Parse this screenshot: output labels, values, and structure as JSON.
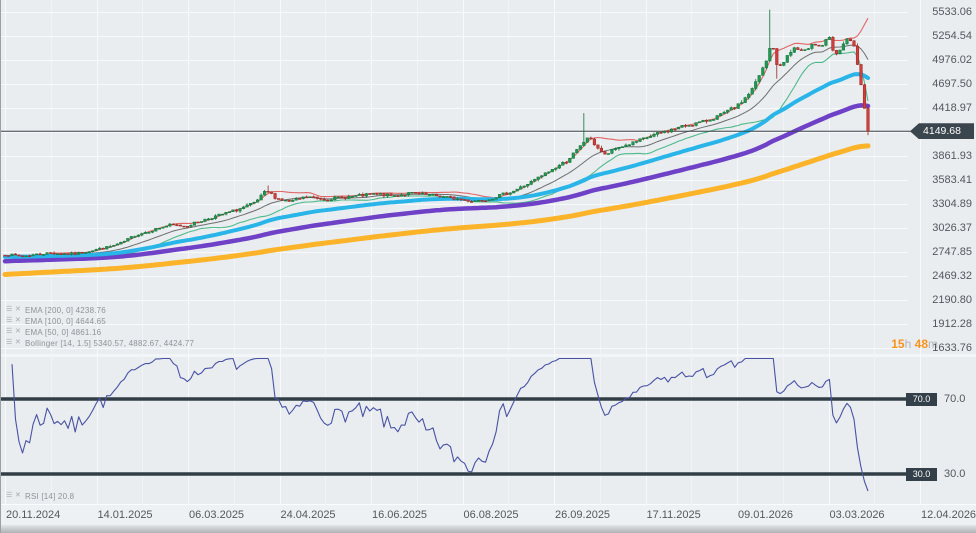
{
  "chart": {
    "current_price_label": "4149.68",
    "countdown": {
      "hours": "15",
      "hours_unit": "h",
      "minutes": "48",
      "minutes_unit": "m"
    },
    "legend_price": [
      {
        "name": "ema-200",
        "label": "EMA [200, 0] 4238.76"
      },
      {
        "name": "ema-100",
        "label": "EMA [100, 0] 4644.65"
      },
      {
        "name": "ema-50",
        "label": "EMA [50, 0] 4861.16"
      },
      {
        "name": "bollinger",
        "label": "Bollinger [14, 1.5] 5340.57, 4882.67, 4424.77"
      }
    ],
    "legend_rsi": [
      {
        "name": "rsi",
        "label": "RSI [14] 20.8"
      }
    ]
  },
  "chart_data": {
    "type": "candlestick",
    "title": "",
    "current_price": 4149.68,
    "price_axis": {
      "ticks": [
        {
          "v": 5533.06,
          "label": "5533.06"
        },
        {
          "v": 5254.54,
          "label": "5254.54"
        },
        {
          "v": 4976.02,
          "label": "4976.02"
        },
        {
          "v": 4697.5,
          "label": "4697.50"
        },
        {
          "v": 4418.97,
          "label": "4418.97"
        },
        {
          "v": 3861.93,
          "label": "3861.93"
        },
        {
          "v": 3583.41,
          "label": "3583.41"
        },
        {
          "v": 3304.89,
          "label": "3304.89"
        },
        {
          "v": 3026.37,
          "label": "3026.37"
        },
        {
          "v": 2747.85,
          "label": "2747.85"
        },
        {
          "v": 2469.32,
          "label": "2469.32"
        },
        {
          "v": 2190.8,
          "label": "2190.80"
        },
        {
          "v": 1912.28,
          "label": "1912.28"
        },
        {
          "v": 1633.76,
          "label": "1633.76"
        }
      ],
      "visible_range": [
        1552,
        5672
      ]
    },
    "time_axis": {
      "labels": [
        "20.11.2024",
        "14.01.2025",
        "06.03.2025",
        "24.04.2025",
        "16.06.2025",
        "06.08.2025",
        "26.09.2025",
        "17.11.2025",
        "09.01.2026",
        "03.03.2026",
        "12.04.2026"
      ]
    },
    "rsi_axis": {
      "levels": [
        {
          "v": 70,
          "label": "70.0"
        },
        {
          "v": 30,
          "label": "30.0"
        }
      ],
      "visible_range": [
        13,
        93
      ]
    },
    "candle_count": 247,
    "price_path_anchors": [
      [
        0.0,
        2720
      ],
      [
        0.02,
        2700
      ],
      [
        0.05,
        2735
      ],
      [
        0.08,
        2725
      ],
      [
        0.1,
        2765
      ],
      [
        0.12,
        2805
      ],
      [
        0.135,
        2850
      ],
      [
        0.15,
        2940
      ],
      [
        0.17,
        3000
      ],
      [
        0.19,
        3060
      ],
      [
        0.21,
        3050
      ],
      [
        0.23,
        3120
      ],
      [
        0.25,
        3180
      ],
      [
        0.27,
        3240
      ],
      [
        0.29,
        3320
      ],
      [
        0.303,
        3460
      ],
      [
        0.315,
        3370
      ],
      [
        0.33,
        3330
      ],
      [
        0.35,
        3390
      ],
      [
        0.37,
        3360
      ],
      [
        0.4,
        3390
      ],
      [
        0.43,
        3420
      ],
      [
        0.45,
        3400
      ],
      [
        0.47,
        3430
      ],
      [
        0.5,
        3400
      ],
      [
        0.52,
        3370
      ],
      [
        0.54,
        3340
      ],
      [
        0.56,
        3360
      ],
      [
        0.575,
        3410
      ],
      [
        0.59,
        3460
      ],
      [
        0.61,
        3560
      ],
      [
        0.63,
        3680
      ],
      [
        0.65,
        3800
      ],
      [
        0.665,
        3950
      ],
      [
        0.675,
        4080
      ],
      [
        0.685,
        3980
      ],
      [
        0.695,
        3870
      ],
      [
        0.71,
        3960
      ],
      [
        0.73,
        4020
      ],
      [
        0.75,
        4100
      ],
      [
        0.77,
        4160
      ],
      [
        0.79,
        4220
      ],
      [
        0.81,
        4260
      ],
      [
        0.83,
        4340
      ],
      [
        0.85,
        4450
      ],
      [
        0.865,
        4620
      ],
      [
        0.875,
        4810
      ],
      [
        0.885,
        5020
      ],
      [
        0.888,
        5240
      ],
      [
        0.895,
        4870
      ],
      [
        0.905,
        5000
      ],
      [
        0.915,
        5120
      ],
      [
        0.925,
        5050
      ],
      [
        0.935,
        5180
      ],
      [
        0.945,
        5130
      ],
      [
        0.955,
        5230
      ],
      [
        0.962,
        5000
      ],
      [
        0.97,
        5150
      ],
      [
        0.978,
        5220
      ],
      [
        0.985,
        5100
      ],
      [
        0.99,
        4800
      ],
      [
        0.995,
        4450
      ],
      [
        1.0,
        4149.68
      ]
    ],
    "price_spikes": [
      {
        "f": 0.888,
        "high": 5560
      },
      {
        "f": 0.672,
        "high": 4360
      },
      {
        "f": 0.303,
        "high": 3520
      },
      {
        "f": 0.895,
        "low": 4760
      }
    ],
    "overlays": {
      "ema": [
        {
          "period": 200,
          "current": 4238.76,
          "start": 2485,
          "color": "#fbb32a",
          "width": 5
        },
        {
          "period": 100,
          "current": 4644.65,
          "start": 2640,
          "color": "#6e41c6",
          "width": 4.5
        },
        {
          "period": 50,
          "current": 4861.16,
          "start": 2690,
          "color": "#29b5e8",
          "width": 4
        }
      ],
      "bollinger": {
        "period": 14,
        "mult": 1.5,
        "upper": 5340.57,
        "middle": 4882.67,
        "lower": 4424.77,
        "colors": {
          "upper": "#e06666",
          "middle": "#6e6e6e",
          "lower": "#4fba8a"
        }
      }
    },
    "rsi": {
      "period": 14,
      "current": 20.8,
      "color": "#4852a3",
      "level_color": "#313e46"
    },
    "colors": {
      "background": "#e9edf0",
      "grid": "#f7f9fa",
      "grid_faint": "#f1f4f6",
      "time_axis_bg": "#eef1f3",
      "candle_up": "#1f9b51",
      "candle_up_border": "#11713a",
      "candle_down": "#d23c3c",
      "candle_down_border": "#93271f",
      "current_price_line": "#3a444b",
      "badge_bg": "#3a454d",
      "countdown_accent": "#f7941d"
    }
  }
}
